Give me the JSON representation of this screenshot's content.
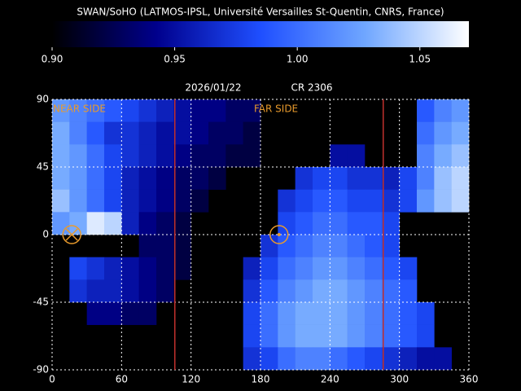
{
  "chart_data": {
    "type": "heatmap",
    "title": "SWAN/SoHO (LATMOS-IPSL, Université Versailles St-Quentin, CNRS, France)",
    "date": "2026/01/22",
    "rotation": "CR 2306",
    "annotations": [
      "NEAR SIDE",
      "FAR SIDE"
    ],
    "colormap": [
      "#000000",
      "#00008c",
      "#1f4fff",
      "#6fa6ff",
      "#ffffff"
    ],
    "clim": [
      0.9,
      1.07
    ],
    "cticks": [
      {
        "value": 0.9,
        "label": "0.90"
      },
      0.95,
      {
        "value": 1,
        "label": "1.00"
      },
      1.05
    ],
    "xlim": [
      0,
      360
    ],
    "ylim": [
      -90,
      90
    ],
    "xticks": [
      0,
      60,
      120,
      180,
      240,
      300,
      360
    ],
    "yticks": [
      -90,
      -45,
      0,
      45,
      90
    ],
    "grid": true,
    "x": [
      7.5,
      22.5,
      37.5,
      52.5,
      67.5,
      82.5,
      97.5,
      112.5,
      127.5,
      142.5,
      157.5,
      172.5,
      187.5,
      202.5,
      217.5,
      232.5,
      247.5,
      262.5,
      277.5,
      292.5,
      307.5,
      322.5,
      337.5,
      352.5
    ],
    "y": [
      82.5,
      67.5,
      52.5,
      37.5,
      22.5,
      7.5,
      -7.5,
      -22.5,
      -37.5,
      -52.5,
      -67.5,
      -82.5
    ],
    "z": [
      [
        1.02,
        1.01,
        1.0,
        0.99,
        0.98,
        0.97,
        0.96,
        0.95,
        0.94,
        0.94,
        0.93,
        0.93,
        null,
        null,
        null,
        null,
        null,
        null,
        null,
        null,
        null,
        0.99,
        1.01,
        1.02
      ],
      [
        1.03,
        1.01,
        0.99,
        0.97,
        0.97,
        0.96,
        0.95,
        0.95,
        0.94,
        0.93,
        0.93,
        0.92,
        null,
        null,
        null,
        null,
        null,
        null,
        null,
        null,
        null,
        1.0,
        1.02,
        1.03
      ],
      [
        1.03,
        1.02,
        1.0,
        0.98,
        0.97,
        0.96,
        0.95,
        0.94,
        0.93,
        0.93,
        0.92,
        0.92,
        null,
        null,
        null,
        null,
        0.95,
        0.95,
        null,
        null,
        null,
        1.01,
        1.03,
        1.04
      ],
      [
        1.03,
        1.02,
        1.0,
        0.98,
        0.96,
        0.95,
        0.94,
        0.93,
        0.93,
        0.92,
        null,
        null,
        null,
        null,
        0.97,
        0.98,
        0.98,
        0.97,
        0.97,
        0.96,
        0.98,
        1.01,
        1.04,
        1.05
      ],
      [
        1.04,
        1.02,
        1.0,
        0.98,
        0.96,
        0.95,
        0.94,
        0.93,
        0.92,
        null,
        null,
        null,
        null,
        0.97,
        0.98,
        0.99,
        0.99,
        0.98,
        0.98,
        0.97,
        0.98,
        1.02,
        1.04,
        1.05
      ],
      [
        1.02,
        1.03,
        1.06,
        1.05,
        0.96,
        0.94,
        0.93,
        0.92,
        null,
        null,
        null,
        null,
        null,
        0.98,
        0.99,
        1.0,
        1.0,
        0.99,
        0.99,
        0.98,
        null,
        null,
        null,
        null
      ],
      [
        null,
        null,
        null,
        null,
        null,
        0.93,
        0.93,
        0.92,
        null,
        null,
        null,
        null,
        0.97,
        0.99,
        1.0,
        1.01,
        1.01,
        1.0,
        0.99,
        0.98,
        null,
        null,
        null,
        null
      ],
      [
        null,
        0.98,
        0.97,
        0.96,
        0.95,
        0.94,
        0.93,
        0.92,
        null,
        null,
        null,
        0.96,
        0.98,
        1.0,
        1.01,
        1.02,
        1.02,
        1.01,
        1.0,
        0.99,
        0.98,
        null,
        null,
        null
      ],
      [
        null,
        0.97,
        0.96,
        0.96,
        0.95,
        0.94,
        0.93,
        null,
        null,
        null,
        null,
        0.97,
        0.99,
        1.01,
        1.02,
        1.03,
        1.03,
        1.02,
        1.01,
        1.0,
        0.99,
        null,
        null,
        null
      ],
      [
        null,
        null,
        0.94,
        0.94,
        0.93,
        0.93,
        null,
        null,
        null,
        null,
        null,
        0.98,
        1.0,
        1.02,
        1.03,
        1.03,
        1.03,
        1.02,
        1.01,
        1.0,
        0.99,
        0.98,
        null,
        null
      ],
      [
        null,
        null,
        null,
        null,
        null,
        null,
        null,
        null,
        null,
        null,
        null,
        0.98,
        1.0,
        1.02,
        1.03,
        1.03,
        1.03,
        1.02,
        1.01,
        1.0,
        0.99,
        0.98,
        null,
        null
      ],
      [
        null,
        null,
        null,
        null,
        null,
        null,
        null,
        null,
        null,
        null,
        null,
        0.97,
        0.98,
        1.0,
        1.01,
        1.01,
        1.0,
        0.99,
        0.98,
        0.97,
        0.96,
        0.95,
        0.95,
        null
      ]
    ],
    "meridians": {
      "values": [
        106,
        286
      ],
      "color": "#c0302c"
    },
    "near_side": {
      "lon": 17,
      "lat": 0
    },
    "far_side": {
      "lon": 196,
      "lat": 0
    },
    "marker_color": "#e89a2c"
  }
}
